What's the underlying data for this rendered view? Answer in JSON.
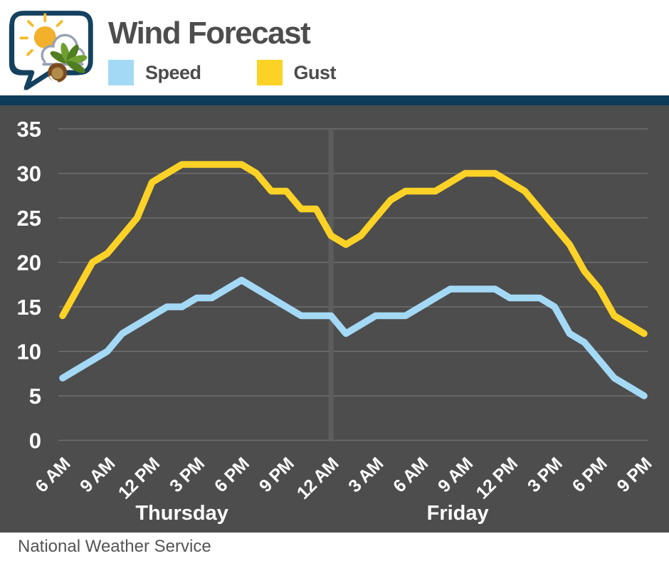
{
  "header": {
    "title": "Wind Forecast",
    "logo_name": "nws-sun-cloud-buckeye-logo",
    "legend": [
      {
        "label": "Speed",
        "color": "#a4d9f6"
      },
      {
        "label": "Gust",
        "color": "#fdd226"
      }
    ]
  },
  "footer": {
    "source": "National Weather Service"
  },
  "colors": {
    "header_bar": "#0d3c5b",
    "chart_background": "#4d4d4d",
    "gridline": "#6f6f6f",
    "day_separator": "#5d5d5d",
    "axis_text": "#ffffff",
    "title_text": "#4d4d4d"
  },
  "chart_data": {
    "type": "line",
    "title": "Wind Forecast",
    "xlabel": "",
    "ylabel": "",
    "ylim": [
      0,
      35
    ],
    "y_ticks": [
      0,
      5,
      10,
      15,
      20,
      25,
      30,
      35
    ],
    "grid": "horizontal",
    "legend_position": "top",
    "x_start": "Thursday 6 AM",
    "x_step_hours": 1,
    "x_tick_every_hours": 3,
    "x_tick_labels": [
      "6 AM",
      "9 AM",
      "12 PM",
      "3 PM",
      "6 PM",
      "9 PM",
      "12 AM",
      "3 AM",
      "6 AM",
      "9 AM",
      "12 PM",
      "3 PM",
      "6 PM",
      "9 PM"
    ],
    "day_labels": [
      {
        "label": "Thursday",
        "center_hour": 8
      },
      {
        "label": "Friday",
        "center_hour": 26.5
      }
    ],
    "day_separator_hour": 18,
    "series": [
      {
        "name": "Speed",
        "color": "#a4d9f6",
        "values": [
          7,
          8,
          9,
          10,
          12,
          13,
          14,
          15,
          15,
          16,
          16,
          17,
          18,
          17,
          16,
          15,
          14,
          14,
          14,
          12,
          13,
          14,
          14,
          14,
          15,
          16,
          17,
          17,
          17,
          17,
          16,
          16,
          16,
          15,
          12,
          11,
          9,
          7,
          6,
          5
        ]
      },
      {
        "name": "Gust",
        "color": "#fdd226",
        "values": [
          14,
          17,
          20,
          21,
          23,
          25,
          29,
          30,
          31,
          31,
          31,
          31,
          31,
          30,
          28,
          28,
          26,
          26,
          23,
          22,
          23,
          25,
          27,
          28,
          28,
          28,
          29,
          30,
          30,
          30,
          29,
          28,
          26,
          24,
          22,
          19,
          17,
          14,
          13,
          12
        ]
      }
    ]
  }
}
